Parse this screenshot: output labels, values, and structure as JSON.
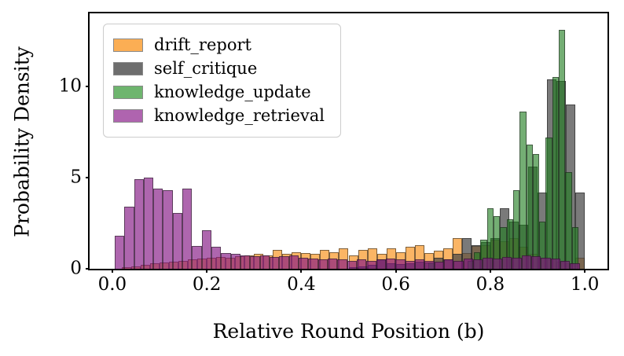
{
  "figure": {
    "xlabel": "Relative Round Position (b)",
    "ylabel": "Probability Density"
  },
  "axes": {
    "xlim": [
      -0.048,
      1.048
    ],
    "ylim": [
      0,
      14
    ],
    "x_ticks": [
      {
        "value": 0.0,
        "label": "0.0"
      },
      {
        "value": 0.2,
        "label": "0.2"
      },
      {
        "value": 0.4,
        "label": "0.4"
      },
      {
        "value": 0.6,
        "label": "0.6"
      },
      {
        "value": 0.8,
        "label": "0.8"
      },
      {
        "value": 1.0,
        "label": "1.0"
      }
    ],
    "y_ticks": [
      {
        "value": 0,
        "label": "0"
      },
      {
        "value": 5,
        "label": "5"
      },
      {
        "value": 10,
        "label": "10"
      }
    ]
  },
  "legend": {
    "position": "upper-left",
    "items": [
      {
        "label": "drift_report",
        "color": "#FBAE54"
      },
      {
        "label": "self_critique",
        "color": "#6E6E6E"
      },
      {
        "label": "knowledge_update",
        "color": "#6EB56E"
      },
      {
        "label": "knowledge_retrieval",
        "color": "#AF64AF"
      }
    ]
  },
  "chart_data": {
    "type": "bar",
    "subtype": "overlapping-histograms",
    "title": "",
    "xlabel": "Relative Round Position (b)",
    "ylabel": "Probability Density",
    "xlim": [
      -0.048,
      1.048
    ],
    "ylim": [
      0,
      14
    ],
    "grid": false,
    "legend_position": "upper-left",
    "series": [
      {
        "name": "drift_report",
        "fill": "rgba(250,150,35,0.7)",
        "edge": "rgba(25,25,25,0.55)",
        "bin_start": 0.0,
        "bin_width": 0.02,
        "densities": [
          0,
          0.1,
          0.15,
          0.2,
          0.3,
          0.35,
          0.4,
          0.45,
          0.5,
          0.55,
          0.6,
          0.65,
          0.6,
          0.7,
          0.75,
          0.8,
          0.75,
          1.05,
          0.8,
          0.9,
          0.85,
          0.8,
          1.05,
          0.9,
          1.1,
          0.75,
          1.05,
          1.1,
          0.8,
          1.1,
          0.9,
          1.2,
          1.3,
          0.85,
          1.0,
          1.1,
          1.7,
          0.85,
          1.25,
          1.3,
          1.6,
          1.5,
          1.7,
          1.2,
          0.8,
          0.6,
          0.5,
          0.4,
          0.3,
          0.6
        ]
      },
      {
        "name": "self_critique",
        "fill": "rgba(70,70,70,0.72)",
        "edge": "rgba(25,25,25,0.55)",
        "bin_start": 0.5,
        "bin_width": 0.02,
        "densities": [
          0.1,
          0.15,
          0.2,
          0.5,
          0.3,
          0.25,
          0.3,
          0.4,
          0.35,
          0.6,
          0.5,
          0.8,
          1.7,
          1.3,
          1.45,
          1.7,
          3.3,
          2.6,
          2.4,
          5.6,
          4.2,
          10.4,
          10.3,
          9.0,
          4.2
        ]
      },
      {
        "name": "knowledge_update",
        "fill": "rgba(30,125,30,0.62)",
        "edge": "rgba(25,25,25,0.55)",
        "bin_start": 0.669,
        "bin_width": 0.0138,
        "densities": [
          0.35,
          0,
          0,
          0,
          0,
          0,
          0.45,
          0.9,
          1.6,
          3.3,
          2.9,
          2.3,
          2.7,
          4.3,
          8.6,
          6.8,
          6.3,
          2.6,
          7.2,
          10.5,
          13.1,
          5.3,
          2.3
        ]
      },
      {
        "name": "knowledge_retrieval",
        "fill": "rgba(130,20,130,0.65)",
        "edge": "rgba(25,25,25,0.55)",
        "bin_start": 0.005,
        "bin_width": 0.0205,
        "densities": [
          1.8,
          3.4,
          4.9,
          5.0,
          4.4,
          4.3,
          3.05,
          4.4,
          1.25,
          2.1,
          1.2,
          0.85,
          0.8,
          0.75,
          0.7,
          0.75,
          0.65,
          0.7,
          0.75,
          0.6,
          0.55,
          0.5,
          0.55,
          0.5,
          0.45,
          0.5,
          0.45,
          0.5,
          0.55,
          0.5,
          0.45,
          0.5,
          0.45,
          0.4,
          0.5,
          0.45,
          0.55,
          0.5,
          0.6,
          0.55,
          0.65,
          0.6,
          0.75,
          0.7,
          0.6,
          0.55,
          0.45,
          0.3
        ]
      }
    ]
  }
}
